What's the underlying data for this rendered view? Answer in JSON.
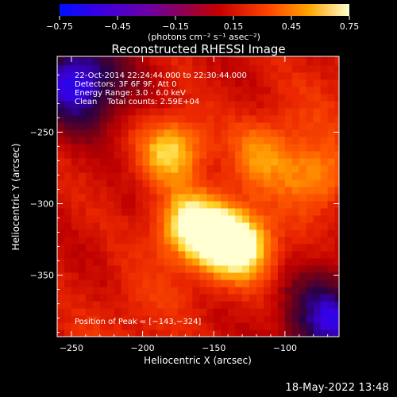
{
  "chart_data": {
    "type": "heatmap",
    "title": "Reconstructed RHESSI Image",
    "xlabel": "Heliocentric X (arcsec)",
    "ylabel": "Heliocentric Y (arcsec)",
    "xlim": [
      -260,
      -62
    ],
    "ylim": [
      -393,
      -197
    ],
    "x_ticks": [
      -250,
      -200,
      -150,
      -100
    ],
    "y_ticks": [
      -250,
      -300,
      -350
    ],
    "x_tick_labels": [
      "−250",
      "−200",
      "−150",
      "−100"
    ],
    "y_tick_labels": [
      "−250",
      "−300",
      "−350"
    ],
    "colorbar": {
      "range": [
        -0.75,
        0.75
      ],
      "ticks": [
        -0.75,
        -0.45,
        -0.15,
        0.15,
        0.45,
        0.75
      ],
      "tick_labels": [
        "−0.75",
        "−0.45",
        "−0.15",
        "0.15",
        "0.45",
        "0.75"
      ],
      "units": "(photons cm⁻² s⁻¹ asec⁻²)"
    },
    "annotations": [
      "22-Oct-2014 22:24:44.000 to 22:30:44.000",
      "Detectors: 3F 6F 9F, Att 0",
      "Energy Range: 3.0 - 6.0 keV",
      "Clean    Total counts: 2.59E+04"
    ],
    "peak_label": "Position of Peak = [−143,−324]",
    "peak": [
      -143,
      -324
    ],
    "bright_sources": [
      {
        "x": -179,
        "y": -262,
        "value": 0.66
      },
      {
        "x": -167,
        "y": -315,
        "value": 0.68
      },
      {
        "x": -143,
        "y": -324,
        "value": 0.72
      },
      {
        "x": -126,
        "y": -333,
        "value": 0.55
      },
      {
        "x": -78,
        "y": -282,
        "value": 0.48
      },
      {
        "x": -115,
        "y": -262,
        "value": 0.4
      }
    ],
    "dim_regions": [
      {
        "x": -245,
        "y": -215,
        "value": -0.7
      },
      {
        "x": -68,
        "y": -380,
        "value": -0.6
      }
    ]
  },
  "footer": {
    "timestamp": "18-May-2022 13:48"
  }
}
